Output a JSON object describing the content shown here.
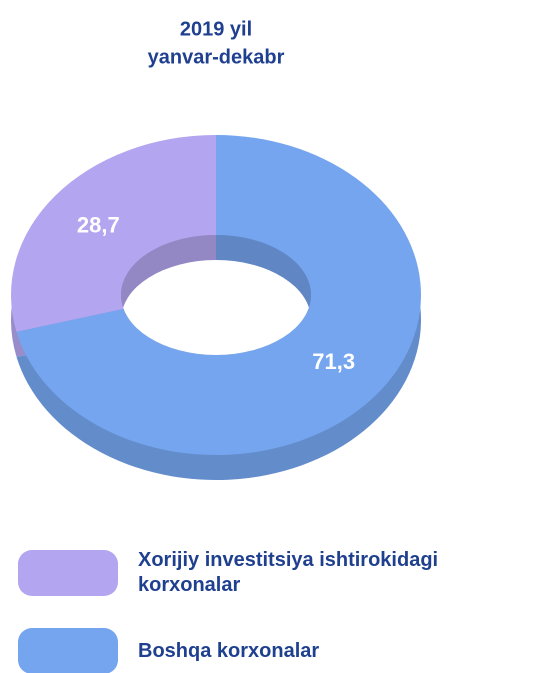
{
  "chart_data": {
    "type": "pie",
    "title": "2019 yil",
    "subtitle": "yanvar-dekabr",
    "series": [
      {
        "name": "Xorijiy investitsiya ishtirokidagi korxonalar",
        "color": "#b3a5ef",
        "values": [
          28.7
        ],
        "value_labels": [
          "28,7"
        ]
      },
      {
        "name": "Boshqa korxonalar",
        "color": "#75a5ef",
        "values": [
          71.3
        ],
        "value_labels": [
          "71,3"
        ]
      }
    ]
  }
}
